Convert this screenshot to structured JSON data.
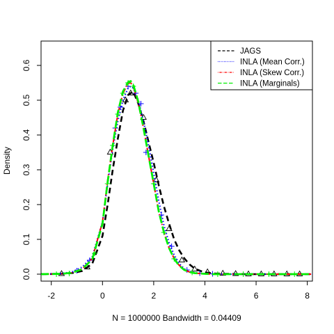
{
  "chart_data": {
    "type": "line",
    "title": "",
    "xlabel": "N = 1000000   Bandwidth = 0.04409",
    "ylabel": "Density",
    "xlim": [
      -2.4,
      8.2
    ],
    "ylim": [
      -0.02,
      0.67
    ],
    "x_ticks": [
      -2,
      0,
      2,
      4,
      6,
      8
    ],
    "x_tick_labels": [
      "-2",
      "0",
      "2",
      "4",
      "6",
      "8"
    ],
    "y_ticks": [
      0.0,
      0.1,
      0.2,
      0.3,
      0.4,
      0.5,
      0.6
    ],
    "y_tick_labels": [
      "0.0",
      "0.1",
      "0.2",
      "0.3",
      "0.4",
      "0.5",
      "0.6"
    ],
    "grid": false,
    "legend_position": "top-right",
    "series": [
      {
        "name": "JAGS",
        "color": "#000000",
        "line_style": "dashed",
        "marker": "triangle",
        "x": [
          -2.4,
          -1.6,
          -1.2,
          -0.8,
          -0.4,
          0.0,
          0.2,
          0.4,
          0.6,
          0.8,
          1.0,
          1.2,
          1.4,
          1.6,
          1.8,
          2.0,
          2.2,
          2.4,
          2.6,
          2.8,
          3.0,
          3.2,
          3.4,
          3.6,
          3.8,
          4.0,
          4.4,
          4.8,
          5.2,
          5.6,
          6.0,
          6.5,
          7.0,
          7.5,
          8.2
        ],
        "y": [
          0.0,
          0.001,
          0.003,
          0.009,
          0.03,
          0.11,
          0.2,
          0.3,
          0.39,
          0.47,
          0.515,
          0.525,
          0.49,
          0.44,
          0.38,
          0.32,
          0.255,
          0.195,
          0.145,
          0.1,
          0.068,
          0.045,
          0.028,
          0.016,
          0.01,
          0.005,
          0.002,
          0.001,
          0.0005,
          0.0,
          0.0,
          0.0,
          0.0,
          0.0,
          0.0
        ],
        "marker_x": [
          -1.6,
          -0.6,
          0.3,
          0.9,
          1.1,
          1.6,
          2.1,
          2.6,
          3.1,
          3.6,
          4.1,
          4.7,
          5.2,
          5.7,
          6.2,
          6.7,
          7.2,
          7.7
        ],
        "marker_y": [
          0.001,
          0.02,
          0.35,
          0.5,
          0.52,
          0.45,
          0.27,
          0.13,
          0.04,
          0.014,
          0.006,
          0.002,
          0.001,
          0.0,
          0.0,
          0.0,
          0.0,
          0.0
        ]
      },
      {
        "name": "INLA (Mean Corr.)",
        "color": "#0000ff",
        "line_style": "dotted",
        "marker": "plus",
        "x": [
          -2.4,
          -1.6,
          -1.2,
          -0.8,
          -0.4,
          0.0,
          0.2,
          0.4,
          0.6,
          0.8,
          1.0,
          1.1,
          1.2,
          1.4,
          1.6,
          1.8,
          2.0,
          2.2,
          2.4,
          2.6,
          2.8,
          3.0,
          3.2,
          3.4,
          3.6,
          4.0,
          4.4,
          5.0,
          6.0,
          7.0,
          8.2
        ],
        "y": [
          0.0,
          0.002,
          0.006,
          0.02,
          0.05,
          0.15,
          0.26,
          0.36,
          0.44,
          0.5,
          0.535,
          0.54,
          0.535,
          0.5,
          0.44,
          0.37,
          0.29,
          0.21,
          0.14,
          0.09,
          0.055,
          0.03,
          0.015,
          0.008,
          0.004,
          0.001,
          0.0005,
          0.0,
          0.0,
          0.0,
          0.0
        ],
        "marker_x": [
          -1.0,
          -0.5,
          0.5,
          0.7,
          1.0,
          1.3,
          1.5,
          1.7,
          2.3,
          2.7,
          3.3,
          3.8,
          4.3
        ],
        "marker_y": [
          0.01,
          0.04,
          0.42,
          0.48,
          0.54,
          0.52,
          0.49,
          0.35,
          0.17,
          0.08,
          0.012,
          0.003,
          0.001
        ]
      },
      {
        "name": "INLA (Skew Corr.)",
        "color": "#ff0000",
        "line_style": "dotdash",
        "marker": "none",
        "x": [
          -2.4,
          -1.6,
          -1.2,
          -0.8,
          -0.4,
          0.0,
          0.2,
          0.4,
          0.6,
          0.8,
          1.0,
          1.1,
          1.2,
          1.4,
          1.6,
          1.8,
          2.0,
          2.2,
          2.4,
          2.6,
          2.8,
          3.0,
          3.2,
          3.4,
          3.6,
          4.0,
          4.4,
          5.0,
          6.0,
          7.0,
          8.2
        ],
        "y": [
          0.0,
          0.001,
          0.004,
          0.015,
          0.045,
          0.15,
          0.27,
          0.37,
          0.46,
          0.52,
          0.548,
          0.55,
          0.54,
          0.49,
          0.42,
          0.34,
          0.26,
          0.18,
          0.12,
          0.075,
          0.045,
          0.025,
          0.013,
          0.006,
          0.003,
          0.001,
          0.0,
          0.0,
          0.0,
          0.0,
          0.0
        ]
      },
      {
        "name": "INLA (Marginals)",
        "color": "#00ee00",
        "line_style": "longdash",
        "marker": "plus",
        "x": [
          -2.4,
          -1.6,
          -1.2,
          -0.8,
          -0.4,
          0.0,
          0.2,
          0.4,
          0.6,
          0.8,
          1.0,
          1.1,
          1.2,
          1.4,
          1.6,
          1.8,
          2.0,
          2.2,
          2.4,
          2.6,
          2.8,
          3.0,
          3.2,
          3.4,
          3.6,
          4.0,
          4.4,
          5.0,
          6.0,
          7.0,
          8.2
        ],
        "y": [
          0.0,
          0.001,
          0.004,
          0.014,
          0.043,
          0.145,
          0.265,
          0.37,
          0.465,
          0.525,
          0.552,
          0.555,
          0.545,
          0.495,
          0.42,
          0.34,
          0.26,
          0.18,
          0.12,
          0.075,
          0.044,
          0.024,
          0.012,
          0.006,
          0.003,
          0.001,
          0.0,
          0.0,
          0.0,
          0.0,
          0.0
        ],
        "marker_x": [
          -1.8,
          -1.3,
          -0.3,
          0.2,
          0.4,
          0.6,
          0.8,
          1.0,
          1.2,
          2.0,
          2.4,
          2.8,
          3.5,
          4.5,
          5.5,
          6.5,
          7.5
        ],
        "marker_y": [
          0.0,
          0.002,
          0.06,
          0.26,
          0.37,
          0.46,
          0.52,
          0.55,
          0.54,
          0.26,
          0.12,
          0.044,
          0.005,
          0.0,
          0.0,
          0.0,
          0.0
        ]
      }
    ]
  }
}
